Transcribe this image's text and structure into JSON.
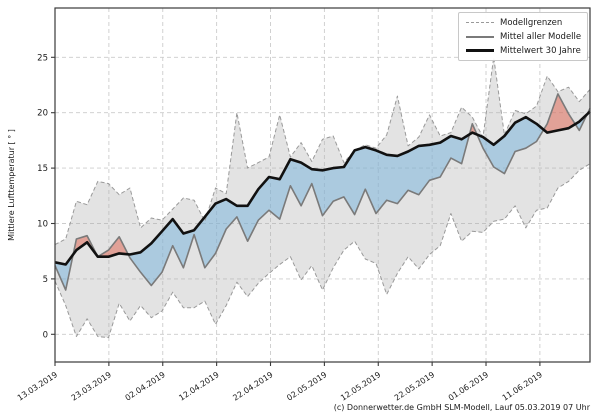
{
  "figure": {
    "ylabel": "Mittlere Lufttemperatur [ ° ]",
    "caption": "(c) Donnerwetter.de GmbH SLM-Modell, Lauf 05.03.2019 07 Uhr"
  },
  "legend": {
    "items": [
      {
        "label": "Modellgrenzen",
        "style": "dashed-gray"
      },
      {
        "label": "Mittel aller Modelle",
        "style": "solid-gray"
      },
      {
        "label": "Mittelwert 30 Jahre",
        "style": "solid-black-thick"
      }
    ]
  },
  "chart_data": {
    "type": "line",
    "title": "",
    "xlabel": "",
    "ylabel": "Mittlere Lufttemperatur [ ° ]",
    "ylim": [
      -2.5,
      29.45
    ],
    "xlim": [
      0,
      99.3
    ],
    "grid": true,
    "legend_position": "upper right",
    "yticks": [
      0,
      5,
      10,
      15,
      20,
      25
    ],
    "xticks": [
      {
        "label": "13.03.2019",
        "day": 0
      },
      {
        "label": "23.03.2019",
        "day": 10
      },
      {
        "label": "02.04.2019",
        "day": 20
      },
      {
        "label": "12.04.2019",
        "day": 30
      },
      {
        "label": "22.04.2019",
        "day": 40
      },
      {
        "label": "02.05.2019",
        "day": 50
      },
      {
        "label": "12.05.2019",
        "day": 60
      },
      {
        "label": "22.05.2019",
        "day": 70
      },
      {
        "label": "01.06.2019",
        "day": 80
      },
      {
        "label": "11.06.2019",
        "day": 90
      }
    ],
    "x_uniform": {
      "start_day": 0,
      "end_day": 99.3,
      "n_points": 51
    },
    "series": [
      {
        "name": "Modellgrenzen (obere Grenze)",
        "role": "upper_bound",
        "values": [
          8.1,
          8.6,
          12.0,
          11.7,
          13.8,
          13.6,
          12.6,
          13.2,
          9.6,
          10.5,
          10.3,
          11.3,
          12.3,
          12.1,
          10.2,
          13.2,
          12.7,
          20.0,
          15.0,
          15.5,
          16.0,
          19.8,
          16.0,
          17.3,
          15.6,
          17.6,
          17.9,
          15.5,
          16.6,
          17.1,
          16.8,
          18.0,
          21.5,
          17.0,
          17.8,
          19.8,
          17.9,
          18.2,
          20.5,
          19.6,
          17.8,
          25.0,
          18.0,
          20.2,
          19.9,
          20.6,
          23.3,
          21.9,
          22.3,
          21.0,
          22.1
        ]
      },
      {
        "name": "Modellgrenzen (untere Grenze)",
        "role": "lower_bound",
        "values": [
          4.8,
          2.6,
          -0.2,
          1.4,
          -0.2,
          -0.3,
          2.8,
          1.2,
          2.6,
          1.5,
          2.1,
          3.8,
          2.4,
          2.4,
          3.0,
          0.9,
          2.6,
          4.7,
          3.4,
          4.6,
          5.5,
          6.3,
          7.0,
          4.9,
          6.2,
          4.0,
          6.0,
          7.6,
          8.4,
          6.8,
          6.4,
          3.6,
          5.5,
          7.0,
          5.9,
          7.2,
          8.0,
          10.9,
          8.4,
          9.3,
          9.2,
          10.2,
          10.4,
          11.6,
          9.6,
          11.2,
          11.4,
          13.2,
          13.8,
          14.8,
          15.4
        ]
      },
      {
        "name": "Mittel aller Modelle",
        "role": "model_mean",
        "values": [
          6.2,
          4.0,
          8.6,
          8.9,
          7.0,
          7.6,
          8.8,
          6.9,
          5.6,
          4.4,
          5.6,
          8.0,
          6.0,
          9.0,
          6.0,
          7.3,
          9.5,
          10.6,
          8.4,
          10.3,
          11.2,
          10.4,
          13.4,
          11.6,
          13.6,
          10.7,
          12.0,
          12.4,
          10.8,
          13.1,
          10.9,
          12.1,
          11.8,
          13.0,
          12.6,
          13.9,
          14.2,
          15.9,
          15.4,
          19.0,
          16.8,
          15.1,
          14.5,
          16.5,
          16.8,
          17.4,
          19.0,
          21.7,
          19.9,
          18.4,
          20.4
        ]
      },
      {
        "name": "Mittelwert 30 Jahre",
        "role": "climate_mean",
        "values": [
          6.5,
          6.3,
          7.6,
          8.3,
          7.0,
          7.0,
          7.3,
          7.2,
          7.4,
          8.2,
          9.3,
          10.4,
          9.1,
          9.4,
          10.6,
          11.8,
          12.2,
          11.6,
          11.6,
          13.1,
          14.2,
          14.0,
          15.8,
          15.5,
          14.9,
          14.8,
          15.0,
          15.1,
          16.6,
          16.9,
          16.6,
          16.2,
          16.1,
          16.5,
          17.0,
          17.1,
          17.3,
          17.9,
          17.6,
          18.2,
          17.8,
          17.1,
          17.9,
          19.1,
          19.6,
          19.0,
          18.2,
          18.4,
          18.6,
          19.2,
          20.1
        ]
      }
    ],
    "colors": {
      "grid": "#cccccc",
      "spine": "#3a3a3a",
      "text": "#1a1a1a",
      "envelope_fill": "rgba(174,174,174,0.35)",
      "envelope_edge": "#999999",
      "mean_models": "#7a7a7a",
      "mean_30y": "#111111",
      "below_normal_fill": "rgba(116,178,220,0.5)",
      "above_normal_fill": "rgba(224,96,76,0.5)"
    }
  }
}
